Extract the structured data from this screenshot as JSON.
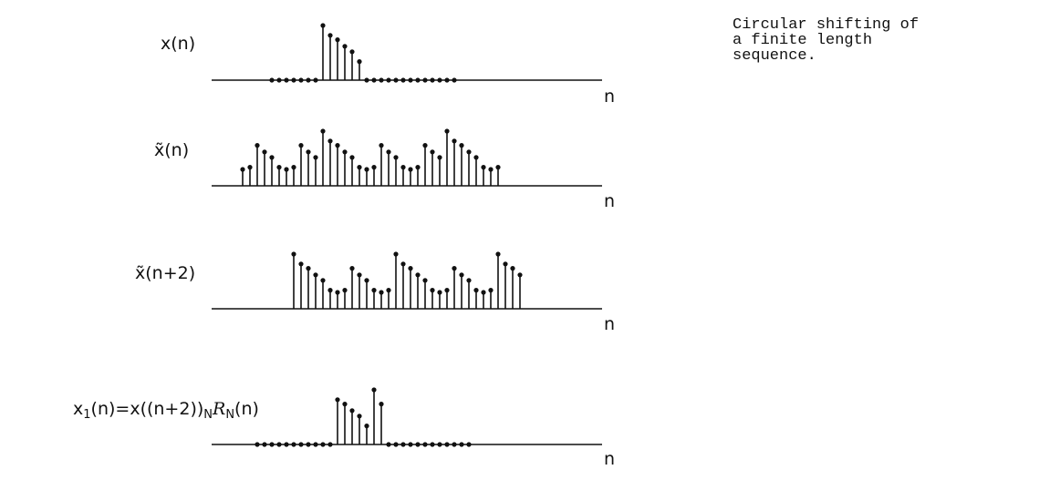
{
  "caption": {
    "lines": [
      "Circular shifting of",
      "a finite length",
      "sequence."
    ]
  },
  "axis_label": "n",
  "plots": [
    {
      "id": "x",
      "parts": [
        {
          "text": "x(n)"
        }
      ],
      "values": [
        0,
        0,
        0,
        0,
        0,
        0,
        0,
        0,
        0,
        0,
        0,
        0,
        0,
        0,
        0,
        0,
        1.0,
        0.82,
        0.74,
        0.62,
        0.52,
        0.34,
        0,
        0,
        0,
        0,
        0,
        0,
        0,
        0,
        0,
        0,
        0,
        0,
        0,
        0,
        0,
        0,
        0,
        0,
        0,
        0,
        0,
        0,
        0,
        0,
        0,
        0
      ],
      "nonzero_hint": "dots"
    },
    {
      "id": "xt",
      "parts": [
        {
          "text": "x̃(n)"
        }
      ],
      "values": [
        0,
        0,
        0,
        0,
        0,
        0.3,
        0.34,
        0.74,
        0.62,
        0.52,
        0.34,
        0.3,
        0.34,
        0.74,
        0.62,
        0.52,
        1.0,
        0.82,
        0.74,
        0.62,
        0.52,
        0.34,
        0.3,
        0.34,
        0.74,
        0.62,
        0.52,
        0.34,
        0.3,
        0.34,
        0.74,
        0.62,
        0.52,
        1.0,
        0.82,
        0.74,
        0.62,
        0.52,
        0.34,
        0.3,
        0.34,
        0,
        0,
        0,
        0,
        0,
        0,
        0
      ]
    },
    {
      "id": "xt2",
      "parts": [
        {
          "text": "x̃(n+2)"
        }
      ],
      "values": [
        0,
        0,
        0,
        0,
        0,
        0,
        0,
        0,
        0,
        0,
        0,
        0,
        1.0,
        0.82,
        0.74,
        0.62,
        0.52,
        0.34,
        0.3,
        0.34,
        0.74,
        0.62,
        0.52,
        0.34,
        0.3,
        0.34,
        1.0,
        0.82,
        0.74,
        0.62,
        0.52,
        0.34,
        0.3,
        0.34,
        0.74,
        0.62,
        0.52,
        0.34,
        0.3,
        0.34,
        1.0,
        0.82,
        0.74,
        0.62,
        0,
        0,
        0,
        0
      ]
    },
    {
      "id": "x1",
      "parts": [
        {
          "text": "x"
        },
        {
          "text": "1",
          "sub": true
        },
        {
          "text": "(n)=x((n+2))"
        },
        {
          "text": "N",
          "sub": true
        },
        {
          "text": "R",
          "script": true
        },
        {
          "text": "N",
          "sub": true
        },
        {
          "text": "(n)"
        }
      ],
      "values": [
        0,
        0,
        0,
        0,
        0,
        0,
        0,
        0,
        0,
        0,
        0,
        0,
        0,
        0,
        0,
        0,
        0,
        0,
        0.82,
        0.74,
        0.62,
        0.52,
        0.34,
        1.0,
        0.74,
        0,
        0,
        0,
        0,
        0,
        0,
        0,
        0,
        0,
        0,
        0,
        0,
        0,
        0,
        0,
        0,
        0,
        0,
        0,
        0,
        0,
        0,
        0
      ]
    }
  ]
}
